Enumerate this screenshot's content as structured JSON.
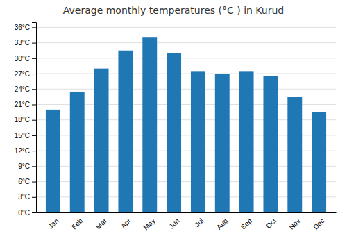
{
  "chart_data": {
    "type": "bar",
    "title": "Average monthly temperatures (°C ) in Kurud",
    "categories": [
      "Jan",
      "Feb",
      "Mar",
      "Apr",
      "May",
      "Jun",
      "Jul",
      "Aug",
      "Sep",
      "Oct",
      "Nov",
      "Dec"
    ],
    "values": [
      20.0,
      23.5,
      28.0,
      31.5,
      34.0,
      31.0,
      27.5,
      27.0,
      27.5,
      26.5,
      22.5,
      19.5
    ],
    "ylim": [
      0,
      37
    ],
    "yticks": [
      {
        "value": 0,
        "label": "0°C"
      },
      {
        "value": 3,
        "label": "3°C"
      },
      {
        "value": 6,
        "label": "6°C"
      },
      {
        "value": 9,
        "label": "9°C"
      },
      {
        "value": 12,
        "label": "12°C"
      },
      {
        "value": 15,
        "label": "15°C"
      },
      {
        "value": 18,
        "label": "18°C"
      },
      {
        "value": 21,
        "label": "21°C"
      },
      {
        "value": 24,
        "label": "24°C"
      },
      {
        "value": 27,
        "label": "27°C"
      },
      {
        "value": 30,
        "label": "30°C"
      },
      {
        "value": 33,
        "label": "33°C"
      },
      {
        "value": 36,
        "label": "36°C"
      }
    ],
    "grid": true
  }
}
